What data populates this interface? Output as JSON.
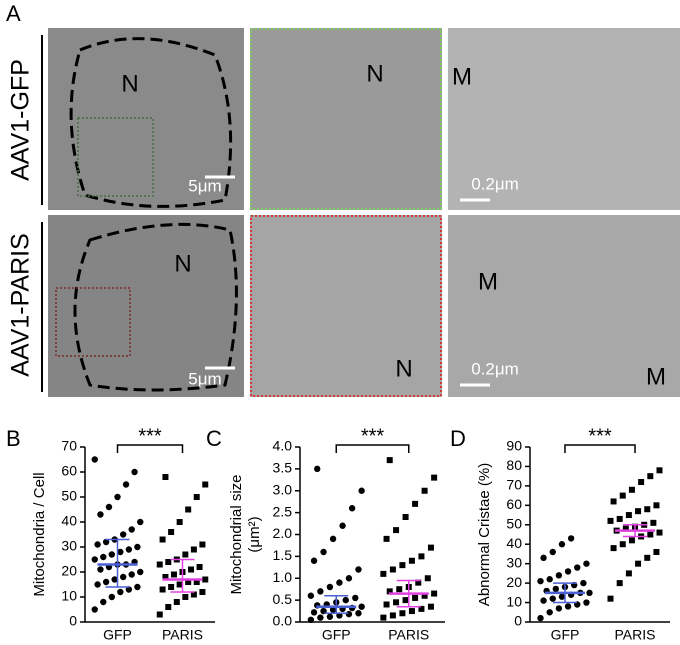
{
  "figure_label": "A",
  "row_labels": [
    "AAV1-GFP",
    "AAV1-PARIS"
  ],
  "images": [
    {
      "labels": [
        "N",
        "5μm"
      ]
    },
    {
      "labels": [
        "N"
      ]
    },
    {
      "labels": [
        "M",
        "0.2μm"
      ]
    },
    {
      "labels": [
        "N",
        "5μm"
      ]
    },
    {
      "labels": [
        "N"
      ]
    },
    {
      "labels": [
        "M",
        "M",
        "0.2μm"
      ]
    }
  ],
  "chart_data": [
    {
      "type": "strip",
      "panel_label": "B",
      "ylabel": [
        "Mitochondria / Cell"
      ],
      "categories": [
        "GFP",
        "PARIS"
      ],
      "annotation": "***",
      "ylim": [
        0,
        70
      ],
      "yticks": [
        0,
        10,
        20,
        30,
        40,
        50,
        60,
        70
      ],
      "markers": [
        "circle",
        "square"
      ],
      "color": "#000000",
      "summary_colors": [
        "#4a5fd4",
        "#e040e0"
      ],
      "values": [
        [
          5,
          8,
          10,
          12,
          13,
          14,
          15,
          16,
          17,
          18,
          19,
          20,
          21,
          22,
          23,
          23,
          24,
          25,
          26,
          27,
          28,
          29,
          30,
          31,
          32,
          33,
          35,
          37,
          40,
          43,
          46,
          50,
          55,
          60,
          65
        ],
        [
          3,
          6,
          8,
          10,
          11,
          12,
          13,
          14,
          15,
          16,
          16,
          17,
          18,
          19,
          20,
          21,
          22,
          23,
          24,
          25,
          27,
          29,
          31,
          33,
          36,
          40,
          45,
          50,
          55,
          58
        ]
      ],
      "center": [
        23,
        17
      ],
      "spread": [
        [
          14,
          33
        ],
        [
          12,
          25
        ]
      ]
    },
    {
      "type": "strip",
      "panel_label": "C",
      "ylabel": [
        "Mitochondrial size",
        "(μm²)"
      ],
      "categories": [
        "GFP",
        "PARIS"
      ],
      "annotation": "***",
      "ylim": [
        0,
        4
      ],
      "yticks": [
        {
          "value": 0,
          "label": "0.0"
        },
        0.5,
        {
          "value": 1,
          "label": "1.0"
        },
        1.5,
        {
          "value": 2,
          "label": "2.0"
        },
        2.5,
        {
          "value": 3,
          "label": "3.0"
        },
        3.5,
        {
          "value": 4,
          "label": "4.0"
        }
      ],
      "markers": [
        "circle",
        "square"
      ],
      "color": "#000000",
      "summary_colors": [
        "#4a5fd4",
        "#e040e0"
      ],
      "values": [
        [
          0.05,
          0.1,
          0.12,
          0.15,
          0.18,
          0.2,
          0.22,
          0.25,
          0.28,
          0.3,
          0.32,
          0.35,
          0.38,
          0.4,
          0.45,
          0.5,
          0.55,
          0.6,
          0.7,
          0.8,
          0.9,
          1.0,
          1.2,
          1.4,
          1.6,
          1.9,
          2.2,
          2.6,
          3.0,
          3.5
        ],
        [
          0.1,
          0.15,
          0.2,
          0.25,
          0.3,
          0.35,
          0.4,
          0.45,
          0.5,
          0.55,
          0.6,
          0.65,
          0.7,
          0.75,
          0.8,
          0.9,
          1.0,
          1.1,
          1.2,
          1.3,
          1.4,
          1.5,
          1.7,
          1.9,
          2.1,
          2.4,
          2.7,
          3.0,
          3.3,
          3.7
        ]
      ],
      "center": [
        0.35,
        0.65
      ],
      "spread": [
        [
          0.2,
          0.6
        ],
        [
          0.35,
          0.95
        ]
      ]
    },
    {
      "type": "strip",
      "panel_label": "D",
      "ylabel": [
        "Abnormal Cristae (%)"
      ],
      "categories": [
        "GFP",
        "PARIS"
      ],
      "annotation": "***",
      "ylim": [
        0,
        90
      ],
      "yticks": [
        0,
        10,
        20,
        30,
        40,
        50,
        60,
        70,
        80,
        90
      ],
      "markers": [
        "circle",
        "square"
      ],
      "color": "#000000",
      "summary_colors": [
        "#4a5fd4",
        "#e040e0"
      ],
      "values": [
        [
          2,
          5,
          7,
          8,
          9,
          10,
          11,
          12,
          13,
          14,
          15,
          15,
          16,
          17,
          18,
          19,
          20,
          21,
          22,
          24,
          26,
          28,
          30,
          33,
          36,
          40,
          43
        ],
        [
          12,
          20,
          25,
          30,
          33,
          36,
          38,
          40,
          42,
          44,
          45,
          46,
          47,
          48,
          49,
          50,
          51,
          52,
          53,
          55,
          57,
          58,
          60,
          62,
          65,
          68,
          72,
          75,
          78
        ]
      ],
      "center": [
        15,
        47
      ],
      "spread": [
        [
          10,
          20
        ],
        [
          44,
          50
        ]
      ]
    }
  ]
}
